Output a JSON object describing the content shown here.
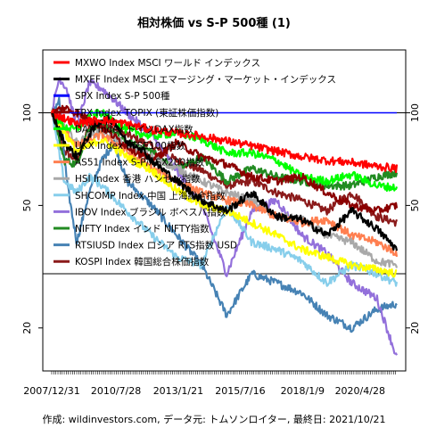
{
  "chart_data": {
    "type": "line",
    "title": "相対株価 vs S-P 500種 (1)",
    "caption": "作成: wildinvestors.com, データ元: トムソンロイター, 最終日: 2021/10/21",
    "y_scale": "log",
    "ylim": [
      14.5,
      160
    ],
    "yticks": [
      20,
      50,
      100
    ],
    "x_tick_labels": [
      "2007/12/31",
      "2010/7/28",
      "2013/1/21",
      "2015/7/16",
      "2018/1/9",
      "2020/4/28"
    ],
    "x_range": [
      "2007-12-31",
      "2021-10-21"
    ],
    "reference_lines": [
      100,
      30
    ],
    "grid": false,
    "legend_position": "top-left",
    "series": [
      {
        "name": "MXWO Index MSCI ワールド インデックス",
        "color": "#ff0000",
        "points": [
          [
            0,
            100
          ],
          [
            0.5,
            96
          ],
          [
            1,
            92
          ],
          [
            1.5,
            94
          ],
          [
            2,
            95
          ],
          [
            3,
            92
          ],
          [
            4,
            88
          ],
          [
            5,
            86
          ],
          [
            6,
            84
          ],
          [
            7,
            81
          ],
          [
            8,
            78
          ],
          [
            9,
            75
          ],
          [
            10,
            72
          ],
          [
            11,
            70
          ],
          [
            12,
            69
          ],
          [
            13,
            67
          ],
          [
            13.8,
            66
          ]
        ]
      },
      {
        "name": "MXEF Index MSCI エマージング・マーケット・インデックス",
        "color": "#000000",
        "points": [
          [
            0,
            100
          ],
          [
            0.5,
            80
          ],
          [
            1,
            72
          ],
          [
            1.5,
            85
          ],
          [
            2,
            95
          ],
          [
            2.5,
            94
          ],
          [
            3,
            80
          ],
          [
            3.5,
            78
          ],
          [
            4,
            70
          ],
          [
            5,
            60
          ],
          [
            6,
            52
          ],
          [
            7,
            48
          ],
          [
            8,
            55
          ],
          [
            9,
            46
          ],
          [
            10,
            45
          ],
          [
            11,
            40
          ],
          [
            12,
            48
          ],
          [
            13,
            42
          ],
          [
            13.8,
            36
          ]
        ]
      },
      {
        "name": "SPX Index S-P 500種",
        "color": "#0000ff",
        "points": [
          [
            0,
            100
          ],
          [
            13.8,
            100
          ]
        ]
      },
      {
        "name": "TPX Index TOPIX (東証株価指数)",
        "color": "#8b0000",
        "points": [
          [
            0,
            100
          ],
          [
            0.5,
            104
          ],
          [
            1,
            100
          ],
          [
            1.5,
            95
          ],
          [
            2,
            90
          ],
          [
            3,
            78
          ],
          [
            4,
            70
          ],
          [
            5,
            80
          ],
          [
            6,
            72
          ],
          [
            7,
            68
          ],
          [
            8,
            62
          ],
          [
            9,
            60
          ],
          [
            10,
            62
          ],
          [
            11,
            55
          ],
          [
            12,
            50
          ],
          [
            13,
            48
          ],
          [
            13.8,
            50
          ]
        ]
      },
      {
        "name": "DAX Index ドイツDAX指数",
        "color": "#00ff00",
        "points": [
          [
            0,
            100
          ],
          [
            0.5,
            90
          ],
          [
            1,
            88
          ],
          [
            1.5,
            98
          ],
          [
            2,
            100
          ],
          [
            3,
            88
          ],
          [
            4,
            84
          ],
          [
            5,
            86
          ],
          [
            6,
            82
          ],
          [
            7,
            74
          ],
          [
            8,
            74
          ],
          [
            9,
            70
          ],
          [
            10,
            62
          ],
          [
            11,
            60
          ],
          [
            12,
            63
          ],
          [
            13,
            58
          ],
          [
            13.8,
            57
          ]
        ]
      },
      {
        "name": "UKX Index FTSE100指数",
        "color": "#ffff00",
        "points": [
          [
            0,
            100
          ],
          [
            1,
            75
          ],
          [
            2,
            82
          ],
          [
            3,
            72
          ],
          [
            4,
            65
          ],
          [
            5,
            56
          ],
          [
            6,
            50
          ],
          [
            7,
            48
          ],
          [
            8,
            44
          ],
          [
            9,
            40
          ],
          [
            10,
            36
          ],
          [
            11,
            34
          ],
          [
            12,
            32
          ],
          [
            13,
            31
          ],
          [
            13.8,
            30
          ]
        ]
      },
      {
        "name": "AS51 Index S-P/ASX200指数",
        "color": "#ff7f50",
        "points": [
          [
            0,
            100
          ],
          [
            1,
            78
          ],
          [
            2,
            85
          ],
          [
            3,
            75
          ],
          [
            4,
            66
          ],
          [
            5,
            60
          ],
          [
            6,
            55
          ],
          [
            7,
            52
          ],
          [
            8,
            50
          ],
          [
            9,
            46
          ],
          [
            10,
            44
          ],
          [
            11,
            45
          ],
          [
            12,
            40
          ],
          [
            13,
            38
          ],
          [
            13.8,
            35
          ]
        ]
      },
      {
        "name": "HSI Index 香港 ハンセン指数",
        "color": "#a9a9a9",
        "points": [
          [
            0,
            100
          ],
          [
            1,
            80
          ],
          [
            2,
            88
          ],
          [
            3,
            78
          ],
          [
            4,
            72
          ],
          [
            5,
            66
          ],
          [
            6,
            60
          ],
          [
            7,
            55
          ],
          [
            8,
            52
          ],
          [
            9,
            46
          ],
          [
            10,
            45
          ],
          [
            11,
            40
          ],
          [
            12,
            38
          ],
          [
            13,
            33
          ],
          [
            13.8,
            32
          ]
        ]
      },
      {
        "name": "SHCOMP Index 中国 上海総合指数",
        "color": "#87ceeb",
        "points": [
          [
            0,
            100
          ],
          [
            0.5,
            60
          ],
          [
            1,
            55
          ],
          [
            1.5,
            62
          ],
          [
            2,
            58
          ],
          [
            3,
            48
          ],
          [
            4,
            40
          ],
          [
            5,
            34
          ],
          [
            6,
            32
          ],
          [
            7,
            50
          ],
          [
            8,
            38
          ],
          [
            9,
            36
          ],
          [
            10,
            33
          ],
          [
            11,
            28
          ],
          [
            12,
            32
          ],
          [
            13,
            30
          ],
          [
            13.8,
            28
          ]
        ]
      },
      {
        "name": "IBOV Index ブラジル ボベスパ指数",
        "color": "#9370db",
        "points": [
          [
            0,
            100
          ],
          [
            0.3,
            130
          ],
          [
            0.6,
            120
          ],
          [
            1,
            90
          ],
          [
            1.5,
            125
          ],
          [
            2,
            120
          ],
          [
            2.5,
            110
          ],
          [
            3,
            100
          ],
          [
            4,
            85
          ],
          [
            5,
            65
          ],
          [
            6,
            50
          ],
          [
            7,
            30
          ],
          [
            8,
            48
          ],
          [
            9,
            52
          ],
          [
            10,
            40
          ],
          [
            11,
            35
          ],
          [
            12,
            28
          ],
          [
            13,
            25
          ],
          [
            13.8,
            16
          ]
        ]
      },
      {
        "name": "NIFTY Index インド NIFTY指数",
        "color": "#228b22",
        "points": [
          [
            0,
            100
          ],
          [
            0.5,
            70
          ],
          [
            1,
            68
          ],
          [
            1.5,
            90
          ],
          [
            2,
            92
          ],
          [
            3,
            80
          ],
          [
            4,
            75
          ],
          [
            5,
            65
          ],
          [
            6,
            72
          ],
          [
            7,
            60
          ],
          [
            8,
            66
          ],
          [
            9,
            62
          ],
          [
            10,
            60
          ],
          [
            11,
            58
          ],
          [
            12,
            58
          ],
          [
            13,
            62
          ],
          [
            13.8,
            64
          ]
        ]
      },
      {
        "name": "RTSIUSD Index ロシア RTS指数 USD",
        "color": "#4682b4",
        "points": [
          [
            0,
            100
          ],
          [
            0.3,
            110
          ],
          [
            0.6,
            60
          ],
          [
            1,
            38
          ],
          [
            1.5,
            55
          ],
          [
            2,
            70
          ],
          [
            2.5,
            80
          ],
          [
            3,
            60
          ],
          [
            4,
            50
          ],
          [
            5,
            40
          ],
          [
            6,
            32
          ],
          [
            7,
            22
          ],
          [
            8,
            30
          ],
          [
            9,
            28
          ],
          [
            10,
            26
          ],
          [
            11,
            22
          ],
          [
            12,
            20
          ],
          [
            13,
            23
          ],
          [
            13.8,
            24
          ]
        ]
      },
      {
        "name": "KOSPI Index 韓国総合株価指数",
        "color": "#8b1a1a",
        "points": [
          [
            0,
            100
          ],
          [
            0.5,
            75
          ],
          [
            1,
            70
          ],
          [
            1.5,
            90
          ],
          [
            2,
            92
          ],
          [
            3,
            85
          ],
          [
            4,
            78
          ],
          [
            5,
            70
          ],
          [
            6,
            65
          ],
          [
            7,
            58
          ],
          [
            8,
            60
          ],
          [
            9,
            55
          ],
          [
            10,
            52
          ],
          [
            11,
            48
          ],
          [
            12,
            55
          ],
          [
            13,
            46
          ],
          [
            13.8,
            44
          ]
        ]
      }
    ]
  }
}
